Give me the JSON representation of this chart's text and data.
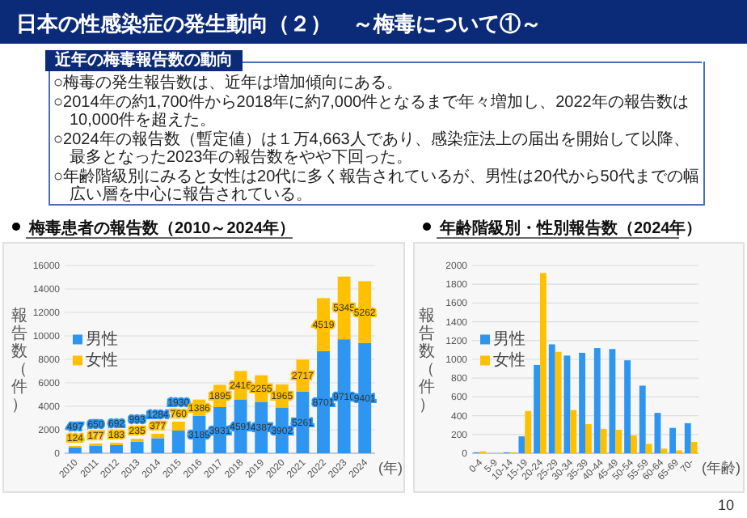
{
  "chart_data": [
    {
      "type": "other",
      "title": "日本の性感染症の発生動向（２）　～梅毒について①～",
      "subtitle": "近年の梅毒報告数の動向",
      "annotations": [
        "○梅毒の発生報告数は、近年は増加傾向にある。",
        "○2014年の約1,700件から2018年に約7,000件となるまで年々増加し、2022年の報告数は10,000件を超えた。",
        "○2024年の報告数（暫定値）は１万4,663人であり、感染症法上の届出を開始して以降、最多となった2023年の報告数をやや下回った。",
        "○年齢階級別にみると女性は20代に多く報告されているが、男性は20代から50代までの幅広い層を中心に報告されている。",
        "10"
      ]
    },
    {
      "type": "bar",
      "title": "梅毒患者の報告数（2010～2024年）",
      "stacked": true,
      "data_labels": true,
      "legend": "left",
      "grid": "y",
      "xlabel": "(年)",
      "ylabel": "報告数（件）",
      "categories": [
        "2010",
        "2011",
        "2012",
        "2013",
        "2014",
        "2015",
        "2016",
        "2017",
        "2018",
        "2019",
        "2020",
        "2021",
        "2022",
        "2023",
        "2024"
      ],
      "ylim": [
        0,
        16000
      ],
      "yticks": [
        0,
        2000,
        4000,
        6000,
        8000,
        10000,
        12000,
        14000,
        16000
      ],
      "series": [
        {
          "name": "男性",
          "color": "#2e96f0",
          "values": [
            497,
            650,
            692,
            993,
            1284,
            1930,
            3189,
            3931,
            4591,
            4387,
            3902,
            5261,
            8701,
            9710,
            9401
          ]
        },
        {
          "name": "女性",
          "color": "#ffc000",
          "values": [
            124,
            177,
            183,
            235,
            377,
            760,
            1386,
            1895,
            2416,
            2255,
            1965,
            2717,
            4519,
            5345,
            5262
          ]
        }
      ]
    },
    {
      "type": "bar",
      "title": "年齢階級別・性別報告数（2024年）",
      "legend": "left",
      "grid": "y",
      "xlabel": "(年齢)",
      "ylabel": "報告数（件）",
      "categories": [
        "0-4",
        "5-9",
        "10-14",
        "15-19",
        "20-24",
        "25-29",
        "30-34",
        "35-39",
        "40-44",
        "45-49",
        "50-54",
        "55-59",
        "60-64",
        "65-69",
        "70-"
      ],
      "ylim": [
        0,
        2000
      ],
      "yticks": [
        0,
        200,
        400,
        600,
        800,
        1000,
        1200,
        1400,
        1600,
        1800,
        2000
      ],
      "series": [
        {
          "name": "男性",
          "color": "#2e96f0",
          "values": [
            10,
            0,
            10,
            180,
            940,
            1160,
            1040,
            1070,
            1120,
            1110,
            990,
            720,
            430,
            270,
            320
          ]
        },
        {
          "name": "女性",
          "color": "#ffc000",
          "values": [
            20,
            0,
            10,
            450,
            1920,
            1080,
            460,
            310,
            260,
            250,
            190,
            100,
            50,
            30,
            120
          ]
        }
      ]
    }
  ]
}
